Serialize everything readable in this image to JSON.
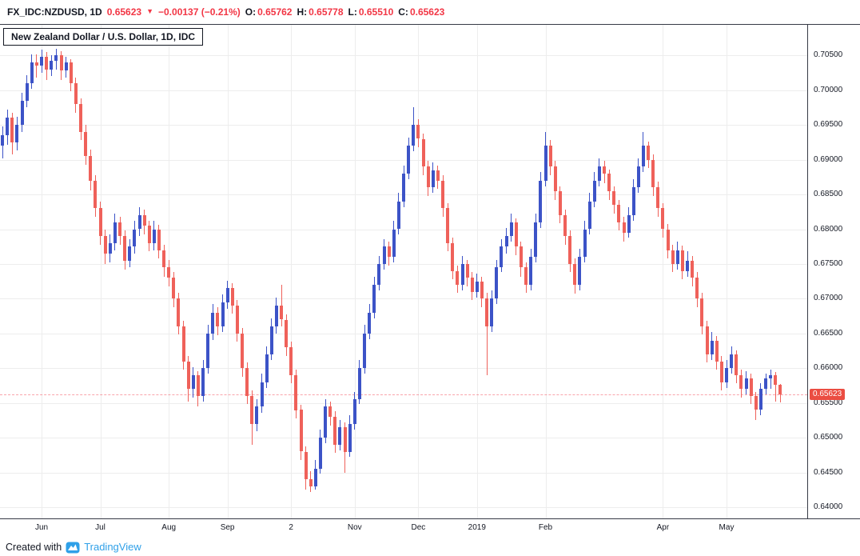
{
  "header": {
    "symbol": "FX_IDC:NZDUSD, 1D",
    "last_price": "0.65623",
    "direction_icon": "▼",
    "change": "−0.00137 (−0.21%)",
    "ohlc": [
      {
        "label": "O:",
        "value": "0.65762"
      },
      {
        "label": "H:",
        "value": "0.65778"
      },
      {
        "label": "L:",
        "value": "0.65510"
      },
      {
        "label": "C:",
        "value": "0.65623"
      }
    ]
  },
  "legend": {
    "title": "New Zealand Dollar / U.S. Dollar, 1D, IDC"
  },
  "price_axis": {
    "last_price_label": "0.65623"
  },
  "footer": {
    "created_with": "Created with",
    "brand": "TradingView"
  },
  "colors": {
    "up": "#3c53c7",
    "down": "#ef615a",
    "grid": "#ededed",
    "text": "#131722",
    "value_red": "#f23645",
    "price_tag_bg": "#eb4d42",
    "brand_blue": "#2fa0e8",
    "axis_border": "#363a45"
  },
  "chart_data": {
    "type": "candlestick",
    "title": "New Zealand Dollar / U.S. Dollar, 1D, IDC",
    "symbol": "FX_IDC:NZDUSD",
    "timeframe": "1D",
    "xlabel": "",
    "ylabel": "",
    "grid": true,
    "legend_position": "top-left",
    "ylim": [
      0.6384,
      0.7094
    ],
    "yticks": [
      0.705,
      0.7,
      0.695,
      0.69,
      0.685,
      0.68,
      0.675,
      0.67,
      0.665,
      0.66,
      0.655,
      0.65,
      0.645,
      0.64
    ],
    "last_close": 0.65623,
    "time_labels": [
      {
        "text": "Jun",
        "index": 8
      },
      {
        "text": "Jul",
        "index": 20
      },
      {
        "text": "Aug",
        "index": 34
      },
      {
        "text": "Sep",
        "index": 46
      },
      {
        "text": "2",
        "index": 59
      },
      {
        "text": "Nov",
        "index": 72
      },
      {
        "text": "Dec",
        "index": 85
      },
      {
        "text": "2019",
        "index": 97
      },
      {
        "text": "Feb",
        "index": 111
      },
      {
        "text": "Apr",
        "index": 135
      },
      {
        "text": "May",
        "index": 148
      }
    ],
    "candles": [
      [
        0.692,
        0.6948,
        0.6902,
        0.6935
      ],
      [
        0.6935,
        0.6972,
        0.6921,
        0.696
      ],
      [
        0.696,
        0.6968,
        0.6908,
        0.6925
      ],
      [
        0.6925,
        0.6962,
        0.6913,
        0.695
      ],
      [
        0.695,
        0.6996,
        0.694,
        0.6985
      ],
      [
        0.6985,
        0.7022,
        0.6975,
        0.701
      ],
      [
        0.701,
        0.7052,
        0.7002,
        0.704
      ],
      [
        0.704,
        0.7051,
        0.7018,
        0.7035
      ],
      [
        0.7035,
        0.7058,
        0.7025,
        0.7048
      ],
      [
        0.7048,
        0.7055,
        0.7015,
        0.703
      ],
      [
        0.703,
        0.705,
        0.702,
        0.7042
      ],
      [
        0.7042,
        0.706,
        0.703,
        0.705
      ],
      [
        0.705,
        0.7056,
        0.7015,
        0.7028
      ],
      [
        0.7028,
        0.7048,
        0.7018,
        0.704
      ],
      [
        0.704,
        0.7045,
        0.6998,
        0.701
      ],
      [
        0.701,
        0.7018,
        0.6968,
        0.698
      ],
      [
        0.698,
        0.6988,
        0.6928,
        0.694
      ],
      [
        0.694,
        0.695,
        0.6892,
        0.6905
      ],
      [
        0.6905,
        0.6915,
        0.6856,
        0.687
      ],
      [
        0.687,
        0.6878,
        0.6818,
        0.683
      ],
      [
        0.683,
        0.684,
        0.6778,
        0.679
      ],
      [
        0.679,
        0.68,
        0.675,
        0.6765
      ],
      [
        0.6765,
        0.6792,
        0.6752,
        0.678
      ],
      [
        0.678,
        0.6822,
        0.677,
        0.681
      ],
      [
        0.681,
        0.6818,
        0.6778,
        0.679
      ],
      [
        0.679,
        0.6798,
        0.6742,
        0.6755
      ],
      [
        0.6755,
        0.6786,
        0.6745,
        0.6775
      ],
      [
        0.6775,
        0.6812,
        0.6765,
        0.68
      ],
      [
        0.68,
        0.6832,
        0.679,
        0.682
      ],
      [
        0.682,
        0.6828,
        0.6792,
        0.6805
      ],
      [
        0.6805,
        0.6812,
        0.6768,
        0.678
      ],
      [
        0.678,
        0.6812,
        0.677,
        0.68
      ],
      [
        0.68,
        0.6806,
        0.6758,
        0.677
      ],
      [
        0.677,
        0.6778,
        0.6732,
        0.6745
      ],
      [
        0.6745,
        0.6756,
        0.6718,
        0.673
      ],
      [
        0.673,
        0.6738,
        0.6688,
        0.67
      ],
      [
        0.67,
        0.6708,
        0.6648,
        0.666
      ],
      [
        0.666,
        0.6668,
        0.6598,
        0.661
      ],
      [
        0.661,
        0.6618,
        0.6552,
        0.657
      ],
      [
        0.657,
        0.6602,
        0.6558,
        0.659
      ],
      [
        0.659,
        0.6596,
        0.6545,
        0.656
      ],
      [
        0.656,
        0.6612,
        0.6552,
        0.66
      ],
      [
        0.66,
        0.6662,
        0.6592,
        0.665
      ],
      [
        0.665,
        0.6692,
        0.664,
        0.668
      ],
      [
        0.668,
        0.6688,
        0.6648,
        0.666
      ],
      [
        0.666,
        0.6706,
        0.6652,
        0.6695
      ],
      [
        0.6695,
        0.6726,
        0.6685,
        0.6715
      ],
      [
        0.6715,
        0.6722,
        0.6678,
        0.669
      ],
      [
        0.669,
        0.6698,
        0.6638,
        0.665
      ],
      [
        0.665,
        0.6658,
        0.6588,
        0.66
      ],
      [
        0.66,
        0.6608,
        0.6548,
        0.656
      ],
      [
        0.656,
        0.6568,
        0.649,
        0.652
      ],
      [
        0.652,
        0.6556,
        0.651,
        0.6545
      ],
      [
        0.6545,
        0.6592,
        0.6536,
        0.658
      ],
      [
        0.658,
        0.6632,
        0.6572,
        0.662
      ],
      [
        0.662,
        0.6672,
        0.6612,
        0.666
      ],
      [
        0.666,
        0.6702,
        0.665,
        0.669
      ],
      [
        0.669,
        0.672,
        0.666,
        0.667
      ],
      [
        0.667,
        0.6678,
        0.6618,
        0.663
      ],
      [
        0.663,
        0.6638,
        0.6578,
        0.659
      ],
      [
        0.659,
        0.6598,
        0.6528,
        0.654
      ],
      [
        0.654,
        0.6548,
        0.6468,
        0.648
      ],
      [
        0.648,
        0.6488,
        0.6425,
        0.644
      ],
      [
        0.644,
        0.6452,
        0.6422,
        0.643
      ],
      [
        0.643,
        0.6468,
        0.6426,
        0.6455
      ],
      [
        0.6455,
        0.6512,
        0.6448,
        0.65
      ],
      [
        0.65,
        0.6556,
        0.6492,
        0.6545
      ],
      [
        0.6545,
        0.6552,
        0.6518,
        0.653
      ],
      [
        0.653,
        0.6538,
        0.6478,
        0.649
      ],
      [
        0.649,
        0.6526,
        0.6482,
        0.6515
      ],
      [
        0.6515,
        0.6522,
        0.645,
        0.648
      ],
      [
        0.648,
        0.6532,
        0.6472,
        0.652
      ],
      [
        0.652,
        0.6566,
        0.6512,
        0.6555
      ],
      [
        0.6555,
        0.6612,
        0.6548,
        0.66
      ],
      [
        0.66,
        0.6662,
        0.6592,
        0.665
      ],
      [
        0.665,
        0.6692,
        0.6642,
        0.668
      ],
      [
        0.668,
        0.6732,
        0.6672,
        0.672
      ],
      [
        0.672,
        0.6762,
        0.6712,
        0.675
      ],
      [
        0.675,
        0.6786,
        0.6742,
        0.6775
      ],
      [
        0.6775,
        0.6782,
        0.6748,
        0.676
      ],
      [
        0.676,
        0.6812,
        0.6752,
        0.68
      ],
      [
        0.68,
        0.6852,
        0.6792,
        0.684
      ],
      [
        0.684,
        0.6892,
        0.6832,
        0.688
      ],
      [
        0.688,
        0.6932,
        0.6872,
        0.692
      ],
      [
        0.692,
        0.6975,
        0.6912,
        0.695
      ],
      [
        0.695,
        0.6958,
        0.6918,
        0.693
      ],
      [
        0.693,
        0.6938,
        0.6878,
        0.689
      ],
      [
        0.689,
        0.6898,
        0.6848,
        0.686
      ],
      [
        0.686,
        0.6896,
        0.6852,
        0.6885
      ],
      [
        0.6885,
        0.6892,
        0.6858,
        0.687
      ],
      [
        0.687,
        0.6878,
        0.6818,
        0.683
      ],
      [
        0.683,
        0.6838,
        0.6768,
        0.678
      ],
      [
        0.678,
        0.6788,
        0.6728,
        0.674
      ],
      [
        0.674,
        0.6748,
        0.6708,
        0.672
      ],
      [
        0.672,
        0.6762,
        0.6712,
        0.675
      ],
      [
        0.675,
        0.6756,
        0.6718,
        0.673
      ],
      [
        0.673,
        0.6738,
        0.6698,
        0.671
      ],
      [
        0.671,
        0.6736,
        0.6702,
        0.6725
      ],
      [
        0.6725,
        0.6732,
        0.6688,
        0.67
      ],
      [
        0.67,
        0.6708,
        0.659,
        0.666
      ],
      [
        0.666,
        0.6712,
        0.6652,
        0.67
      ],
      [
        0.67,
        0.6756,
        0.6692,
        0.6745
      ],
      [
        0.6745,
        0.6786,
        0.6738,
        0.6775
      ],
      [
        0.6775,
        0.6802,
        0.6765,
        0.679
      ],
      [
        0.679,
        0.6822,
        0.6782,
        0.681
      ],
      [
        0.681,
        0.6816,
        0.6762,
        0.6775
      ],
      [
        0.6775,
        0.6782,
        0.6732,
        0.6745
      ],
      [
        0.6745,
        0.6752,
        0.6708,
        0.672
      ],
      [
        0.672,
        0.6772,
        0.6712,
        0.676
      ],
      [
        0.676,
        0.6822,
        0.6752,
        0.681
      ],
      [
        0.681,
        0.6882,
        0.6802,
        0.687
      ],
      [
        0.687,
        0.694,
        0.6862,
        0.692
      ],
      [
        0.692,
        0.6928,
        0.6878,
        0.689
      ],
      [
        0.689,
        0.6898,
        0.6842,
        0.6855
      ],
      [
        0.6855,
        0.6862,
        0.6808,
        0.682
      ],
      [
        0.682,
        0.6828,
        0.6778,
        0.679
      ],
      [
        0.679,
        0.6798,
        0.6738,
        0.675
      ],
      [
        0.675,
        0.6758,
        0.6708,
        0.672
      ],
      [
        0.672,
        0.6772,
        0.6712,
        0.676
      ],
      [
        0.676,
        0.6812,
        0.6752,
        0.68
      ],
      [
        0.68,
        0.6852,
        0.6792,
        0.684
      ],
      [
        0.684,
        0.6882,
        0.6832,
        0.687
      ],
      [
        0.687,
        0.6902,
        0.6862,
        0.689
      ],
      [
        0.689,
        0.6898,
        0.6866,
        0.688
      ],
      [
        0.688,
        0.6886,
        0.6842,
        0.6855
      ],
      [
        0.6855,
        0.6862,
        0.6822,
        0.6835
      ],
      [
        0.6835,
        0.6842,
        0.6798,
        0.681
      ],
      [
        0.681,
        0.6818,
        0.6782,
        0.6795
      ],
      [
        0.6795,
        0.6832,
        0.6788,
        0.682
      ],
      [
        0.682,
        0.6872,
        0.6812,
        0.686
      ],
      [
        0.686,
        0.6902,
        0.6852,
        0.689
      ],
      [
        0.689,
        0.694,
        0.6882,
        0.692
      ],
      [
        0.692,
        0.6926,
        0.6888,
        0.69
      ],
      [
        0.69,
        0.6908,
        0.6848,
        0.686
      ],
      [
        0.686,
        0.6868,
        0.6818,
        0.683
      ],
      [
        0.683,
        0.6838,
        0.6788,
        0.68
      ],
      [
        0.68,
        0.6808,
        0.6758,
        0.677
      ],
      [
        0.677,
        0.6778,
        0.6738,
        0.675
      ],
      [
        0.675,
        0.6782,
        0.6742,
        0.677
      ],
      [
        0.677,
        0.6776,
        0.6728,
        0.674
      ],
      [
        0.674,
        0.6768,
        0.6732,
        0.6755
      ],
      [
        0.6755,
        0.6762,
        0.6718,
        0.673
      ],
      [
        0.673,
        0.6738,
        0.6688,
        0.67
      ],
      [
        0.67,
        0.6708,
        0.6648,
        0.666
      ],
      [
        0.666,
        0.6668,
        0.6608,
        0.662
      ],
      [
        0.662,
        0.6652,
        0.6612,
        0.664
      ],
      [
        0.664,
        0.6646,
        0.6598,
        0.661
      ],
      [
        0.661,
        0.6618,
        0.6568,
        0.658
      ],
      [
        0.658,
        0.6612,
        0.6572,
        0.66
      ],
      [
        0.66,
        0.6632,
        0.6592,
        0.662
      ],
      [
        0.662,
        0.6626,
        0.6578,
        0.659
      ],
      [
        0.659,
        0.6598,
        0.6558,
        0.657
      ],
      [
        0.657,
        0.6596,
        0.6562,
        0.6585
      ],
      [
        0.6585,
        0.6592,
        0.6548,
        0.656
      ],
      [
        0.656,
        0.6566,
        0.6525,
        0.654
      ],
      [
        0.654,
        0.6578,
        0.6532,
        0.657
      ],
      [
        0.657,
        0.6592,
        0.6562,
        0.6585
      ],
      [
        0.6585,
        0.6598,
        0.657,
        0.659
      ],
      [
        0.659,
        0.6595,
        0.6552,
        0.6576
      ],
      [
        0.65762,
        0.65778,
        0.6551,
        0.65623
      ]
    ]
  }
}
